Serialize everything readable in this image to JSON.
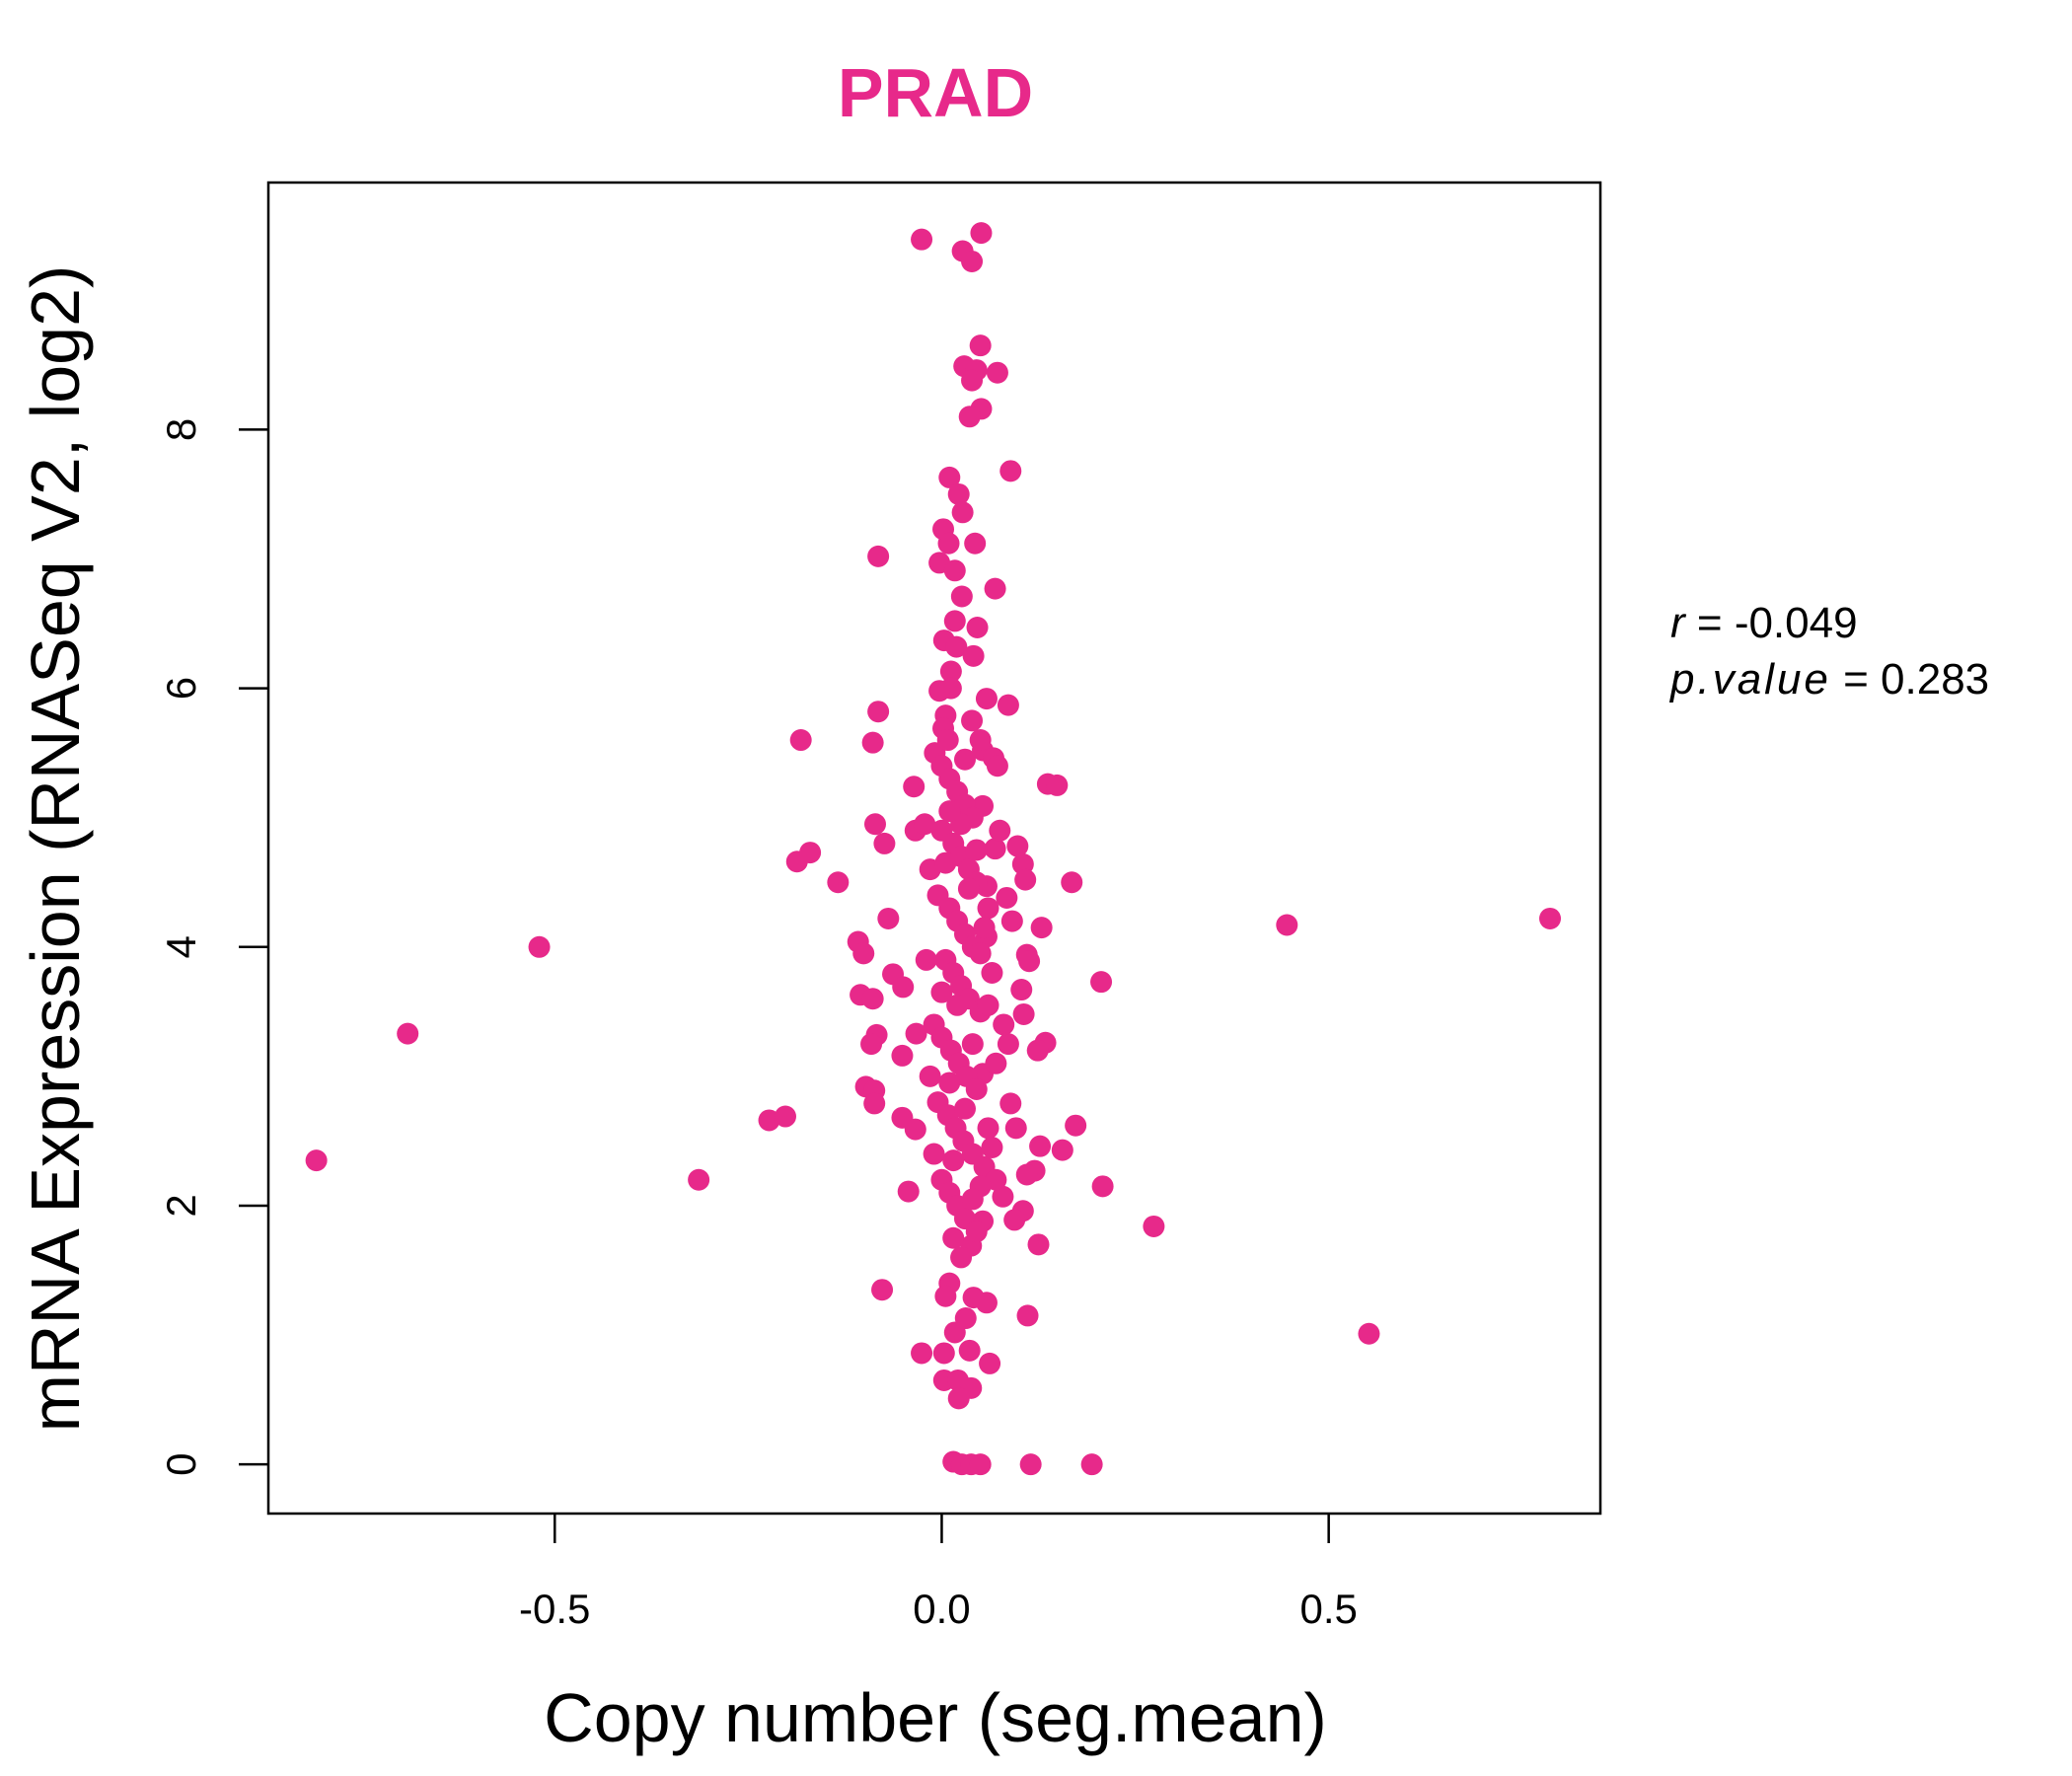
{
  "chart_data": {
    "type": "scatter",
    "title": "PRAD",
    "xlabel": "Copy number (seg.mean)",
    "ylabel": "mRNA Expression (RNASeq V2, log2)",
    "xlim": [
      -0.87,
      0.851
    ],
    "ylim": [
      -0.38,
      9.91
    ],
    "xticks": [
      -0.5,
      0.0,
      0.5
    ],
    "xtick_labels": [
      "-0.5",
      "0.0",
      "0.5"
    ],
    "yticks": [
      0,
      2,
      4,
      6,
      8
    ],
    "ytick_labels": [
      "0",
      "2",
      "4",
      "6",
      "8"
    ],
    "grid": false,
    "color": "#E7298A",
    "stats": {
      "r_label": "r",
      "r_value": "-0.049",
      "p_label": "p.value",
      "p_value": "0.283"
    },
    "points": [
      [
        -0.808,
        2.35
      ],
      [
        -0.69,
        3.33
      ],
      [
        -0.52,
        4.0
      ],
      [
        -0.314,
        2.2
      ],
      [
        -0.223,
        2.66
      ],
      [
        -0.202,
        2.69
      ],
      [
        -0.182,
        5.6
      ],
      [
        -0.187,
        4.66
      ],
      [
        -0.17,
        4.73
      ],
      [
        -0.134,
        4.5
      ],
      [
        -0.082,
        7.02
      ],
      [
        -0.082,
        5.82
      ],
      [
        -0.089,
        5.58
      ],
      [
        -0.086,
        4.95
      ],
      [
        -0.074,
        4.8
      ],
      [
        -0.069,
        4.22
      ],
      [
        -0.108,
        4.04
      ],
      [
        -0.101,
        3.95
      ],
      [
        -0.105,
        3.63
      ],
      [
        -0.089,
        3.6
      ],
      [
        -0.084,
        3.32
      ],
      [
        -0.091,
        3.25
      ],
      [
        -0.063,
        3.79
      ],
      [
        -0.05,
        3.69
      ],
      [
        -0.033,
        3.33
      ],
      [
        -0.051,
        3.16
      ],
      [
        -0.098,
        2.92
      ],
      [
        -0.087,
        2.89
      ],
      [
        -0.087,
        2.79
      ],
      [
        -0.051,
        2.68
      ],
      [
        -0.034,
        2.59
      ],
      [
        -0.043,
        2.11
      ],
      [
        -0.077,
        1.35
      ],
      [
        -0.026,
        0.86
      ],
      [
        -0.026,
        9.47
      ],
      [
        0.051,
        9.52
      ],
      [
        0.027,
        9.38
      ],
      [
        0.039,
        9.3
      ],
      [
        0.05,
        8.65
      ],
      [
        0.029,
        8.49
      ],
      [
        0.045,
        8.46
      ],
      [
        0.072,
        8.44
      ],
      [
        0.039,
        8.38
      ],
      [
        0.051,
        8.16
      ],
      [
        0.036,
        8.1
      ],
      [
        0.01,
        7.63
      ],
      [
        0.089,
        7.68
      ],
      [
        0.022,
        7.5
      ],
      [
        0.027,
        7.36
      ],
      [
        0.002,
        7.23
      ],
      [
        0.009,
        7.12
      ],
      [
        0.043,
        7.12
      ],
      [
        -0.003,
        6.97
      ],
      [
        0.017,
        6.91
      ],
      [
        0.069,
        6.77
      ],
      [
        0.026,
        6.71
      ],
      [
        0.017,
        6.52
      ],
      [
        0.046,
        6.47
      ],
      [
        0.003,
        6.37
      ],
      [
        0.019,
        6.32
      ],
      [
        0.041,
        6.25
      ],
      [
        0.012,
        6.13
      ],
      [
        0.012,
        6.0
      ],
      [
        -0.003,
        5.98
      ],
      [
        0.058,
        5.92
      ],
      [
        0.086,
        5.87
      ],
      [
        0.005,
        5.79
      ],
      [
        0.039,
        5.75
      ],
      [
        0.002,
        5.69
      ],
      [
        0.053,
        5.52
      ],
      [
        0.067,
        5.46
      ],
      [
        0.072,
        5.4
      ],
      [
        -0.009,
        5.5
      ],
      [
        -0.036,
        5.24
      ],
      [
        0.137,
        5.26
      ],
      [
        0.149,
        5.25
      ],
      [
        0.053,
        5.09
      ],
      [
        -0.034,
        4.9
      ],
      [
        -0.022,
        4.95
      ],
      [
        0.098,
        4.78
      ],
      [
        0.105,
        4.64
      ],
      [
        0.069,
        4.76
      ],
      [
        0.108,
        4.52
      ],
      [
        0.168,
        4.5
      ],
      [
        0.058,
        4.47
      ],
      [
        0.084,
        4.38
      ],
      [
        0.091,
        4.2
      ],
      [
        0.129,
        4.15
      ],
      [
        0.058,
        4.08
      ],
      [
        0.11,
        3.94
      ],
      [
        0.113,
        3.89
      ],
      [
        0.206,
        3.73
      ],
      [
        0.103,
        3.67
      ],
      [
        0.106,
        3.48
      ],
      [
        0.134,
        3.26
      ],
      [
        0.124,
        3.2
      ],
      [
        0.086,
        3.25
      ],
      [
        0.053,
        3.02
      ],
      [
        0.089,
        2.79
      ],
      [
        0.096,
        2.6
      ],
      [
        0.173,
        2.62
      ],
      [
        0.127,
        2.46
      ],
      [
        0.156,
        2.43
      ],
      [
        0.12,
        2.27
      ],
      [
        0.11,
        2.24
      ],
      [
        0.208,
        2.15
      ],
      [
        0.079,
        2.07
      ],
      [
        0.105,
        1.96
      ],
      [
        0.094,
        1.89
      ],
      [
        0.274,
        1.84
      ],
      [
        0.125,
        1.7
      ],
      [
        0.053,
        1.88
      ],
      [
        0.038,
        1.69
      ],
      [
        0.058,
        1.25
      ],
      [
        0.111,
        1.15
      ],
      [
        0.041,
        1.29
      ],
      [
        0.031,
        1.13
      ],
      [
        0.017,
        1.02
      ],
      [
        0.01,
        1.4
      ],
      [
        0.005,
        1.3
      ],
      [
        0.036,
        0.88
      ],
      [
        0.003,
        0.86
      ],
      [
        0.062,
        0.78
      ],
      [
        0.003,
        0.65
      ],
      [
        0.021,
        0.65
      ],
      [
        0.038,
        0.59
      ],
      [
        0.022,
        0.51
      ],
      [
        0.552,
        1.01
      ],
      [
        0.446,
        4.17
      ],
      [
        0.786,
        4.22
      ],
      [
        0.015,
        0.02
      ],
      [
        0.026,
        0.0
      ],
      [
        0.038,
        0.0
      ],
      [
        0.05,
        0.0
      ],
      [
        0.115,
        0.0
      ],
      [
        0.194,
        0.0
      ],
      [
        0.0,
        5.4
      ],
      [
        0.01,
        5.3
      ],
      [
        0.02,
        5.2
      ],
      [
        0.03,
        5.1
      ],
      [
        0.04,
        5.0
      ],
      [
        0.0,
        4.9
      ],
      [
        0.015,
        4.8
      ],
      [
        0.025,
        4.7
      ],
      [
        0.035,
        4.6
      ],
      [
        0.045,
        4.5
      ],
      [
        -0.005,
        4.4
      ],
      [
        0.01,
        4.3
      ],
      [
        0.02,
        4.2
      ],
      [
        0.03,
        4.1
      ],
      [
        0.04,
        4.0
      ],
      [
        0.005,
        3.9
      ],
      [
        0.015,
        3.8
      ],
      [
        0.025,
        3.7
      ],
      [
        0.035,
        3.6
      ],
      [
        0.05,
        3.5
      ],
      [
        -0.01,
        3.4
      ],
      [
        0.0,
        3.3
      ],
      [
        0.012,
        3.2
      ],
      [
        0.022,
        3.1
      ],
      [
        0.032,
        3.0
      ],
      [
        0.045,
        2.9
      ],
      [
        -0.005,
        2.8
      ],
      [
        0.008,
        2.7
      ],
      [
        0.018,
        2.6
      ],
      [
        0.028,
        2.5
      ],
      [
        0.04,
        2.4
      ],
      [
        0.055,
        2.3
      ],
      [
        0.0,
        2.2
      ],
      [
        0.01,
        2.1
      ],
      [
        0.02,
        2.0
      ],
      [
        0.03,
        1.9
      ],
      [
        0.045,
        1.8
      ],
      [
        0.015,
        1.75
      ],
      [
        0.06,
        2.6
      ],
      [
        0.07,
        3.1
      ],
      [
        0.065,
        3.8
      ],
      [
        0.06,
        4.3
      ],
      [
        0.075,
        4.9
      ],
      [
        0.08,
        3.4
      ],
      [
        0.07,
        2.2
      ],
      [
        -0.015,
        3.0
      ],
      [
        -0.02,
        3.9
      ],
      [
        -0.015,
        4.6
      ],
      [
        -0.01,
        2.4
      ],
      [
        0.05,
        5.6
      ],
      [
        0.008,
        5.6
      ],
      [
        0.03,
        5.45
      ],
      [
        0.045,
        4.75
      ],
      [
        0.055,
        4.15
      ],
      [
        0.02,
        3.55
      ],
      [
        0.04,
        3.25
      ],
      [
        0.01,
        2.95
      ],
      [
        0.03,
        2.75
      ],
      [
        0.05,
        2.15
      ],
      [
        0.025,
        1.6
      ],
      [
        0.035,
        4.45
      ],
      [
        0.005,
        4.65
      ],
      [
        0.05,
        3.95
      ],
      [
        0.0,
        3.65
      ],
      [
        0.06,
        3.55
      ],
      [
        0.015,
        2.35
      ],
      [
        0.04,
        2.05
      ],
      [
        0.065,
        2.45
      ],
      [
        0.025,
        4.95
      ],
      [
        0.01,
        5.05
      ]
    ]
  }
}
